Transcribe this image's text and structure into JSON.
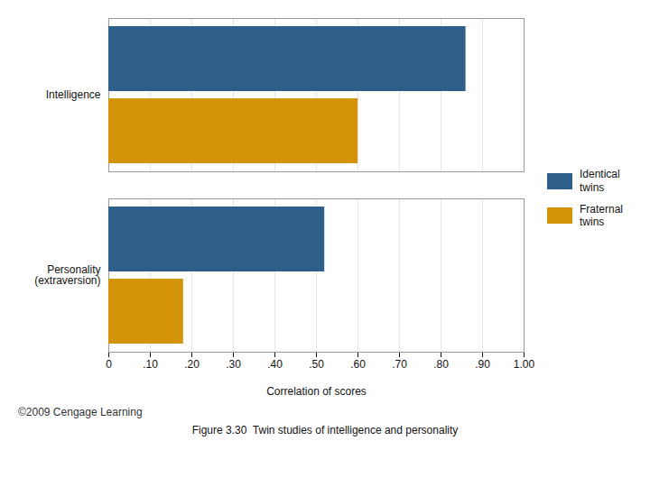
{
  "chart_data": {
    "type": "bar",
    "orientation": "horizontal",
    "categories": [
      "Intelligence",
      "Personality\n(extraversion)"
    ],
    "series": [
      {
        "name": "Identical\ntwins",
        "color": "#2E5F8A",
        "values": [
          0.86,
          0.52
        ]
      },
      {
        "name": "Fraternal\ntwins",
        "color": "#D4940A",
        "values": [
          0.6,
          0.18
        ]
      }
    ],
    "xlabel": "Correlation of scores",
    "xlim": [
      0,
      1.0
    ],
    "xticks": [
      0,
      {
        "value": 0.1,
        "label": ".10"
      },
      {
        "value": 0.2,
        "label": ".20"
      },
      {
        "value": 0.3,
        "label": ".30"
      },
      {
        "value": 0.4,
        "label": ".40"
      },
      {
        "value": 0.5,
        "label": ".50"
      },
      {
        "value": 0.6,
        "label": ".60"
      },
      {
        "value": 0.7,
        "label": ".70"
      },
      {
        "value": 0.8,
        "label": ".80"
      },
      {
        "value": 0.9,
        "label": ".90"
      },
      {
        "value": 1.0,
        "label": "1.00"
      }
    ],
    "grid": true,
    "legend": "right",
    "annotations": [
      "©2009 Cengage Learning",
      "Figure 3.30  Twin studies of intelligence and personality"
    ]
  }
}
